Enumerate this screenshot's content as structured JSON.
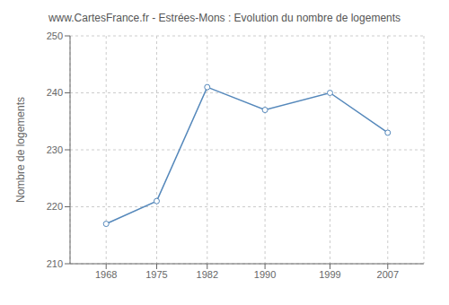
{
  "chart_data": {
    "type": "line",
    "title": "www.CartesFrance.fr - Estrées-Mons : Evolution du nombre de logements",
    "ylabel": "Nombre de logements",
    "x": [
      1968,
      1975,
      1982,
      1990,
      1999,
      2007
    ],
    "values": [
      217,
      221,
      241,
      237,
      240,
      233
    ],
    "xlim": [
      1963,
      2012
    ],
    "ylim": [
      210,
      250
    ],
    "xticks": [
      1968,
      1975,
      1982,
      1990,
      1999,
      2007
    ],
    "yticks": [
      210,
      220,
      230,
      240,
      250
    ],
    "color": "#5588bb",
    "marker": "circle",
    "grid": true
  }
}
